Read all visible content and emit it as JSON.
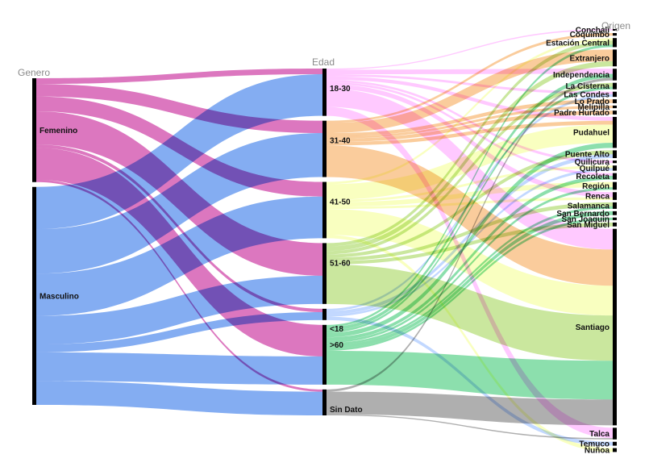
{
  "chart_data": {
    "type": "sankey",
    "columns": [
      {
        "title": "Genero",
        "nodes": [
          "Femenino",
          "Masculino"
        ]
      },
      {
        "title": "Edad",
        "nodes": [
          "18-30",
          "31-40",
          "41-50",
          "51-60",
          "<18",
          ">60",
          "Sin Dato"
        ]
      },
      {
        "title": "Origen",
        "nodes": [
          "Conchalí",
          "Coquimbo",
          "Estación Central",
          "Extranjero",
          "Independencia",
          "La Cisterna",
          "Las Condes",
          "Lo Prado",
          "Melipilla",
          "Padre Hurtado",
          "Pudahuel",
          "Puente Alto",
          "Quilicura",
          "Quilpué",
          "Recoleta",
          "Región",
          "Renca",
          "Salamanca",
          "San Bernardo",
          "San Joaquín",
          "San Miguel",
          "Santiago",
          "Talca",
          "Temuco",
          "Ñuñoa"
        ]
      }
    ],
    "age_colors": {
      "18-30": "#ff9cff",
      "31-40": "#f5a24a",
      "41-50": "#f4ff8c",
      "51-60": "#9fd44e",
      "<18": "#8fb8ff",
      ">60": "#2ec46a",
      "Sin Dato": "#6e6e6e"
    },
    "gender_colors": {
      "Femenino": "#d65fb4",
      "Masculino": "#6f9ff0"
    },
    "links_gender_age": [
      {
        "source": "Femenino",
        "target": "18-30",
        "value": 5
      },
      {
        "source": "Femenino",
        "target": "31-40",
        "value": 11
      },
      {
        "source": "Femenino",
        "target": "41-50",
        "value": 13
      },
      {
        "source": "Femenino",
        "target": "51-60",
        "value": 29
      },
      {
        "source": "Femenino",
        "target": "<18",
        "value": 3
      },
      {
        "source": "Femenino",
        "target": ">60",
        "value": 28
      },
      {
        "source": "Femenino",
        "target": "Sin Dato",
        "value": 2
      },
      {
        "source": "Masculino",
        "target": "18-30",
        "value": 37
      },
      {
        "source": "Masculino",
        "target": "31-40",
        "value": 39
      },
      {
        "source": "Masculino",
        "target": "41-50",
        "value": 37
      },
      {
        "source": "Masculino",
        "target": "51-60",
        "value": 25
      },
      {
        "source": "Masculino",
        "target": "<18",
        "value": 7
      },
      {
        "source": "Masculino",
        "target": ">60",
        "value": 25
      },
      {
        "source": "Masculino",
        "target": "Sin Dato",
        "value": 21
      }
    ],
    "links_age_origin": [
      {
        "source": "18-30",
        "target": "Conchalí",
        "value": 1
      },
      {
        "source": "18-30",
        "target": "Independencia",
        "value": 4
      },
      {
        "source": "18-30",
        "target": "Las Condes",
        "value": 2
      },
      {
        "source": "18-30",
        "target": "Quilicura",
        "value": 2
      },
      {
        "source": "18-30",
        "target": "Recoleta",
        "value": 2
      },
      {
        "source": "18-30",
        "target": "Santiago",
        "value": 16
      },
      {
        "source": "18-30",
        "target": "Talca",
        "value": 8
      },
      {
        "source": "18-30",
        "target": "Pudahuel",
        "value": 3
      },
      {
        "source": "18-30",
        "target": "Renca",
        "value": 4
      },
      {
        "source": "31-40",
        "target": "Coquimbo",
        "value": 2
      },
      {
        "source": "31-40",
        "target": "Extranjero",
        "value": 9
      },
      {
        "source": "31-40",
        "target": "Lo Prado",
        "value": 3
      },
      {
        "source": "31-40",
        "target": "Padre Hurtado",
        "value": 3
      },
      {
        "source": "31-40",
        "target": "Pudahuel",
        "value": 3
      },
      {
        "source": "31-40",
        "target": "Santiago",
        "value": 28
      },
      {
        "source": "31-40",
        "target": "Melipilla",
        "value": 2
      },
      {
        "source": "41-50",
        "target": "Estación Central",
        "value": 2
      },
      {
        "source": "41-50",
        "target": "Pudahuel",
        "value": 14
      },
      {
        "source": "41-50",
        "target": "Quilpué",
        "value": 2
      },
      {
        "source": "41-50",
        "target": "Renca",
        "value": 2
      },
      {
        "source": "41-50",
        "target": "Santiago",
        "value": 23
      },
      {
        "source": "41-50",
        "target": "Ñuñoa",
        "value": 3
      },
      {
        "source": "41-50",
        "target": "Región",
        "value": 4
      },
      {
        "source": "51-60",
        "target": "Estación Central",
        "value": 3
      },
      {
        "source": "51-60",
        "target": "Extranjero",
        "value": 4
      },
      {
        "source": "51-60",
        "target": "La Cisterna",
        "value": 3
      },
      {
        "source": "51-60",
        "target": "Puente Alto",
        "value": 3
      },
      {
        "source": "51-60",
        "target": "Salamanca",
        "value": 3
      },
      {
        "source": "51-60",
        "target": "Santiago",
        "value": 35
      },
      {
        "source": "51-60",
        "target": "San Miguel",
        "value": 3
      },
      {
        "source": "<18",
        "target": "Las Condes",
        "value": 2
      },
      {
        "source": "<18",
        "target": "Temuco",
        "value": 3
      },
      {
        "source": "<18",
        "target": "Quilpué",
        "value": 2
      },
      {
        "source": "<18",
        "target": "Puente Alto",
        "value": 3
      },
      {
        "source": ">60",
        "target": "Estación Central",
        "value": 2
      },
      {
        "source": ">60",
        "target": "Independencia",
        "value": 3
      },
      {
        "source": ">60",
        "target": "La Cisterna",
        "value": 2
      },
      {
        "source": ">60",
        "target": "Recoleta",
        "value": 3
      },
      {
        "source": ">60",
        "target": "San Bernardo",
        "value": 3
      },
      {
        "source": ">60",
        "target": "San Joaquín",
        "value": 2
      },
      {
        "source": ">60",
        "target": "Santiago",
        "value": 30
      },
      {
        "source": ">60",
        "target": "Pudahuel",
        "value": 4
      },
      {
        "source": ">60",
        "target": "Región",
        "value": 2
      },
      {
        "source": ">60",
        "target": "Salamanca",
        "value": 2
      },
      {
        "source": "Sin Dato",
        "target": "Independencia",
        "value": 2
      },
      {
        "source": "Sin Dato",
        "target": "Santiago",
        "value": 20
      },
      {
        "source": "Sin Dato",
        "target": "Talca",
        "value": 1
      }
    ],
    "legend": "none",
    "grid": false
  }
}
